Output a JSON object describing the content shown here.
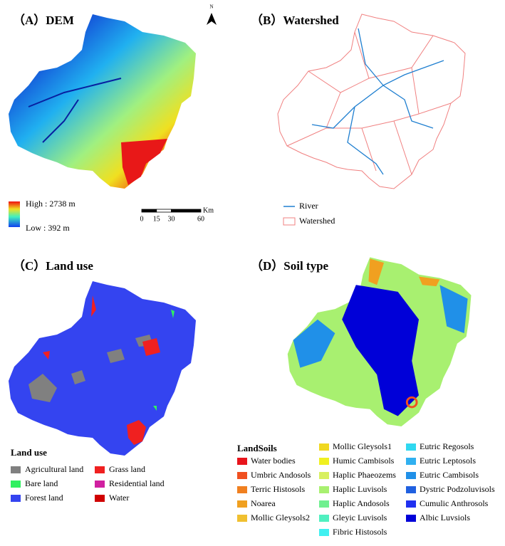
{
  "panels": [
    {
      "title": "（A）DEM",
      "north": "N",
      "legend": {
        "high": "High : 2738 m",
        "low": "Low : 392 m"
      },
      "scale_bar": {
        "unit": "Km",
        "ticks": [
          0,
          15,
          30,
          60
        ]
      }
    },
    {
      "title": "（B）Watershed",
      "legend": [
        {
          "label": "River",
          "color": "#1f7fd0",
          "symbol": "line"
        },
        {
          "label": "Watershed",
          "color": "#f08080",
          "symbol": "box"
        }
      ]
    },
    {
      "title": "（C）Land use",
      "legend_title": "Land use",
      "legend": [
        {
          "label": "Agricultural land",
          "color": "#808080"
        },
        {
          "label": "Bare land",
          "color": "#30f060"
        },
        {
          "label": "Forest land",
          "color": "#3444f0"
        },
        {
          "label": "Grass land",
          "color": "#f02020"
        },
        {
          "label": "Residential land",
          "color": "#d020a0"
        },
        {
          "label": "Water",
          "color": "#d00000"
        }
      ]
    },
    {
      "title": "（D）Soil type",
      "legend_title": "LandSoils",
      "legend": [
        {
          "label": "Water bodies",
          "color": "#e8141c"
        },
        {
          "label": "Umbric Andosols",
          "color": "#f05020"
        },
        {
          "label": "Terric Histosols",
          "color": "#f08020"
        },
        {
          "label": "Noarea",
          "color": "#f0a020"
        },
        {
          "label": "Mollic Gleysols2",
          "color": "#f0c030"
        },
        {
          "label": "Mollic Gleysols1",
          "color": "#f0d820"
        },
        {
          "label": "Humic Cambisols",
          "color": "#f0f020"
        },
        {
          "label": "Haplic Phaeozems",
          "color": "#d8f060"
        },
        {
          "label": "Haplic Luvisols",
          "color": "#a8f070"
        },
        {
          "label": "Haplic Andosols",
          "color": "#70f090"
        },
        {
          "label": "Gleyic Luvisols",
          "color": "#50f0c0"
        },
        {
          "label": "Fibric Histosols",
          "color": "#40f0f0"
        },
        {
          "label": "Eutric Regosols",
          "color": "#30d8f0"
        },
        {
          "label": "Eutric Leptosols",
          "color": "#30b0f0"
        },
        {
          "label": "Eutric Cambisols",
          "color": "#2090e8"
        },
        {
          "label": "Dystric Podzoluvisols",
          "color": "#2060e0"
        },
        {
          "label": "Cumulic Anthrosols",
          "color": "#2030f0"
        },
        {
          "label": "Albic Luvsiols",
          "color": "#0000d8"
        }
      ]
    }
  ]
}
